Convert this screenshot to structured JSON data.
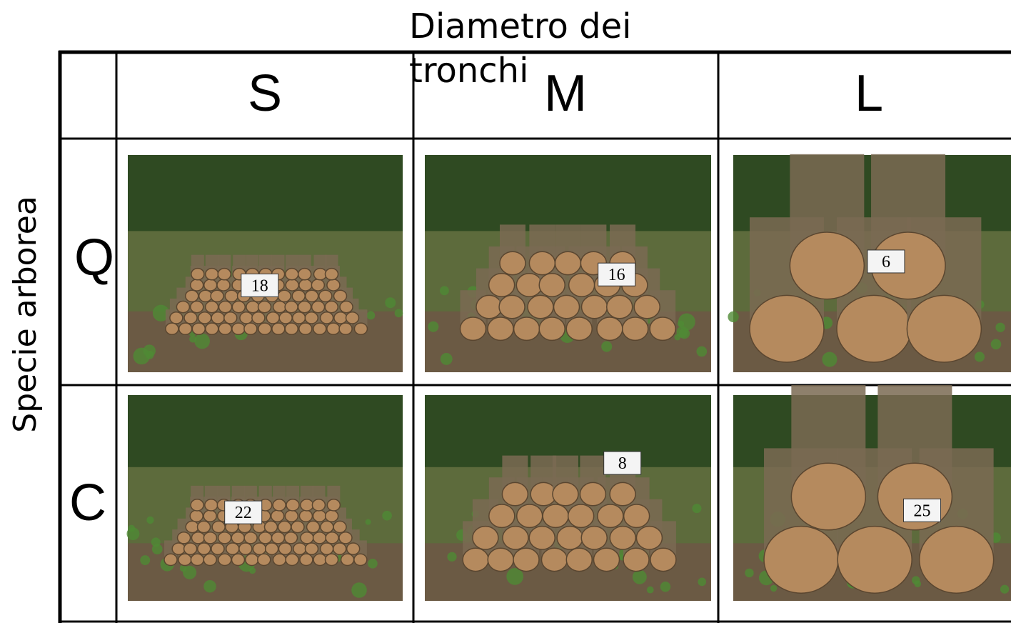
{
  "header": {
    "title": "Diametro dei tronchi",
    "side_label": "Specie arborea"
  },
  "table": {
    "columns": [
      "S",
      "M",
      "L"
    ],
    "rows": [
      {
        "label": "Q",
        "photos": [
          "18",
          "16",
          "6"
        ]
      },
      {
        "label": "C",
        "photos": [
          "22",
          "8",
          "25"
        ]
      }
    ]
  }
}
